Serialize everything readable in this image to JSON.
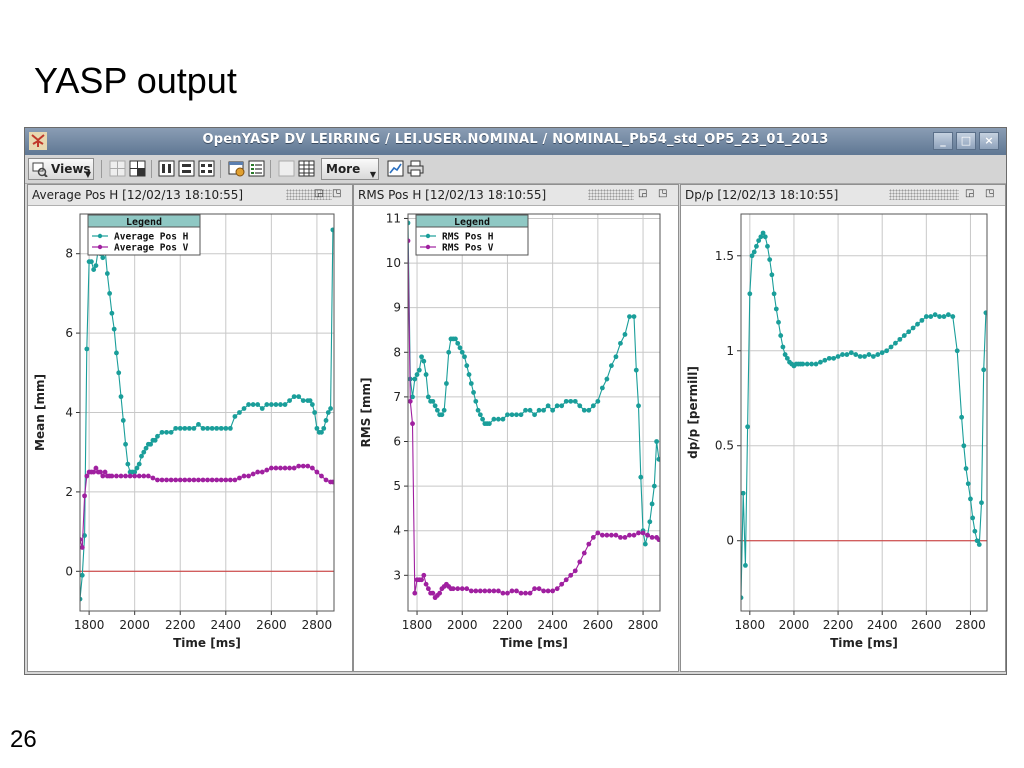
{
  "slide": {
    "title": "YASP output",
    "page_number": "26"
  },
  "window": {
    "title": "OpenYASP DV LEIRRING / LEI.USER.NOMINAL / NOMINAL_Pb54_std_OP5_23_01_2013",
    "controls": {
      "minimize": "_",
      "maximize": "□",
      "close": "×"
    }
  },
  "toolbar": {
    "views_label": "Views",
    "more_label": "More"
  },
  "panels": [
    {
      "header": "Average Pos H  [12/02/13 18:10:55]"
    },
    {
      "header": "RMS Pos H  [12/02/13 18:10:55]"
    },
    {
      "header": "Dp/p  [12/02/13 18:10:55]"
    }
  ],
  "chart_data": [
    {
      "type": "line",
      "xlabel": "Time [ms]",
      "ylabel": "Mean [mm]",
      "xlim": [
        1760,
        2875
      ],
      "ylim": [
        -1.0,
        9.0
      ],
      "xticks": [
        1800,
        2000,
        2200,
        2400,
        2600,
        2800
      ],
      "yticks": [
        0,
        2,
        4,
        6,
        8
      ],
      "grid": true,
      "legend": {
        "title": "Legend",
        "placement": "top-left"
      },
      "hline": {
        "y": 0,
        "color": "#cc3333"
      },
      "series": [
        {
          "name": "Average Pos H",
          "color": "#1a9e9a",
          "x": [
            1760,
            1770,
            1780,
            1790,
            1800,
            1810,
            1820,
            1830,
            1840,
            1850,
            1860,
            1870,
            1880,
            1890,
            1900,
            1910,
            1920,
            1930,
            1940,
            1950,
            1960,
            1970,
            1980,
            1990,
            2000,
            2010,
            2020,
            2030,
            2040,
            2050,
            2060,
            2070,
            2080,
            2090,
            2100,
            2120,
            2140,
            2160,
            2180,
            2200,
            2220,
            2240,
            2260,
            2280,
            2300,
            2320,
            2340,
            2360,
            2380,
            2400,
            2420,
            2440,
            2460,
            2480,
            2500,
            2520,
            2540,
            2560,
            2580,
            2600,
            2620,
            2640,
            2660,
            2680,
            2700,
            2720,
            2740,
            2760,
            2770,
            2780,
            2790,
            2800,
            2810,
            2820,
            2830,
            2840,
            2850,
            2860,
            2870
          ],
          "y": [
            -0.7,
            -0.1,
            0.9,
            5.6,
            7.8,
            7.8,
            7.6,
            7.7,
            8.1,
            8.0,
            7.9,
            8.1,
            7.5,
            7.0,
            6.5,
            6.1,
            5.5,
            5.0,
            4.4,
            3.8,
            3.2,
            2.7,
            2.5,
            2.5,
            2.5,
            2.6,
            2.7,
            2.9,
            3.0,
            3.1,
            3.2,
            3.2,
            3.3,
            3.3,
            3.4,
            3.5,
            3.5,
            3.5,
            3.6,
            3.6,
            3.6,
            3.6,
            3.6,
            3.7,
            3.6,
            3.6,
            3.6,
            3.6,
            3.6,
            3.6,
            3.6,
            3.9,
            4.0,
            4.1,
            4.2,
            4.2,
            4.2,
            4.1,
            4.2,
            4.2,
            4.2,
            4.2,
            4.2,
            4.3,
            4.4,
            4.4,
            4.3,
            4.3,
            4.3,
            4.2,
            4.0,
            3.6,
            3.5,
            3.5,
            3.6,
            3.8,
            4.0,
            4.1,
            8.6
          ]
        },
        {
          "name": "Average Pos V",
          "color": "#a020a0",
          "x": [
            1760,
            1770,
            1780,
            1790,
            1800,
            1810,
            1820,
            1830,
            1840,
            1850,
            1860,
            1870,
            1880,
            1890,
            1900,
            1920,
            1940,
            1960,
            1980,
            2000,
            2020,
            2040,
            2060,
            2080,
            2100,
            2120,
            2140,
            2160,
            2180,
            2200,
            2220,
            2240,
            2260,
            2280,
            2300,
            2320,
            2340,
            2360,
            2380,
            2400,
            2420,
            2440,
            2460,
            2480,
            2500,
            2520,
            2540,
            2560,
            2580,
            2600,
            2620,
            2640,
            2660,
            2680,
            2700,
            2720,
            2740,
            2760,
            2780,
            2800,
            2820,
            2840,
            2860,
            2870
          ],
          "y": [
            0.8,
            0.6,
            1.9,
            2.4,
            2.5,
            2.5,
            2.5,
            2.6,
            2.5,
            2.5,
            2.4,
            2.5,
            2.4,
            2.4,
            2.4,
            2.4,
            2.4,
            2.4,
            2.4,
            2.4,
            2.4,
            2.4,
            2.4,
            2.35,
            2.3,
            2.3,
            2.3,
            2.3,
            2.3,
            2.3,
            2.3,
            2.3,
            2.3,
            2.3,
            2.3,
            2.3,
            2.3,
            2.3,
            2.3,
            2.3,
            2.3,
            2.3,
            2.35,
            2.4,
            2.4,
            2.45,
            2.5,
            2.5,
            2.55,
            2.6,
            2.6,
            2.6,
            2.6,
            2.6,
            2.6,
            2.65,
            2.65,
            2.65,
            2.6,
            2.5,
            2.4,
            2.3,
            2.25,
            2.25
          ]
        }
      ]
    },
    {
      "type": "line",
      "xlabel": "Time [ms]",
      "ylabel": "RMS [mm]",
      "xlim": [
        1760,
        2875
      ],
      "ylim": [
        2.2,
        11.1
      ],
      "xticks": [
        1800,
        2000,
        2200,
        2400,
        2600,
        2800
      ],
      "yticks": [
        3,
        4,
        5,
        6,
        7,
        8,
        9,
        10,
        11
      ],
      "grid": true,
      "legend": {
        "title": "Legend",
        "placement": "top-left"
      },
      "series": [
        {
          "name": "RMS Pos H",
          "color": "#1a9e9a",
          "x": [
            1760,
            1770,
            1780,
            1790,
            1800,
            1810,
            1820,
            1830,
            1840,
            1850,
            1860,
            1870,
            1880,
            1890,
            1900,
            1910,
            1920,
            1930,
            1940,
            1950,
            1960,
            1970,
            1980,
            1990,
            2000,
            2010,
            2020,
            2030,
            2040,
            2050,
            2060,
            2070,
            2080,
            2090,
            2100,
            2110,
            2120,
            2140,
            2160,
            2180,
            2200,
            2220,
            2240,
            2260,
            2280,
            2300,
            2320,
            2340,
            2360,
            2380,
            2400,
            2420,
            2440,
            2460,
            2480,
            2500,
            2520,
            2540,
            2560,
            2580,
            2600,
            2620,
            2640,
            2660,
            2680,
            2700,
            2720,
            2740,
            2760,
            2770,
            2780,
            2790,
            2800,
            2810,
            2820,
            2830,
            2840,
            2850,
            2860,
            2870
          ],
          "y": [
            10.9,
            7.4,
            7.0,
            7.4,
            7.5,
            7.6,
            7.9,
            7.8,
            7.5,
            7.0,
            6.9,
            6.9,
            6.8,
            6.7,
            6.6,
            6.6,
            6.7,
            7.3,
            8.0,
            8.3,
            8.3,
            8.3,
            8.2,
            8.1,
            8.0,
            7.9,
            7.7,
            7.5,
            7.3,
            7.1,
            6.9,
            6.7,
            6.6,
            6.5,
            6.4,
            6.4,
            6.4,
            6.5,
            6.5,
            6.5,
            6.6,
            6.6,
            6.6,
            6.6,
            6.7,
            6.7,
            6.6,
            6.7,
            6.7,
            6.8,
            6.7,
            6.8,
            6.8,
            6.9,
            6.9,
            6.9,
            6.8,
            6.7,
            6.7,
            6.8,
            6.9,
            7.2,
            7.4,
            7.7,
            7.9,
            8.2,
            8.4,
            8.8,
            8.8,
            7.6,
            6.8,
            5.2,
            4.0,
            3.7,
            3.9,
            4.2,
            4.6,
            5.0,
            6.0,
            5.6
          ]
        },
        {
          "name": "RMS Pos V",
          "color": "#a020a0",
          "x": [
            1760,
            1770,
            1780,
            1790,
            1800,
            1810,
            1820,
            1830,
            1840,
            1850,
            1860,
            1870,
            1880,
            1890,
            1900,
            1910,
            1920,
            1930,
            1940,
            1950,
            1960,
            1980,
            2000,
            2020,
            2040,
            2060,
            2080,
            2100,
            2120,
            2140,
            2160,
            2180,
            2200,
            2220,
            2240,
            2260,
            2280,
            2300,
            2320,
            2340,
            2360,
            2380,
            2400,
            2420,
            2440,
            2460,
            2480,
            2500,
            2520,
            2540,
            2560,
            2580,
            2600,
            2620,
            2640,
            2660,
            2680,
            2700,
            2720,
            2740,
            2760,
            2780,
            2800,
            2820,
            2840,
            2860,
            2870
          ],
          "y": [
            10.5,
            6.9,
            6.4,
            2.6,
            2.9,
            2.9,
            2.9,
            3.0,
            2.8,
            2.7,
            2.6,
            2.6,
            2.5,
            2.55,
            2.6,
            2.7,
            2.75,
            2.8,
            2.75,
            2.7,
            2.7,
            2.7,
            2.7,
            2.7,
            2.65,
            2.65,
            2.65,
            2.65,
            2.65,
            2.65,
            2.65,
            2.6,
            2.6,
            2.65,
            2.65,
            2.6,
            2.6,
            2.6,
            2.7,
            2.7,
            2.65,
            2.65,
            2.65,
            2.7,
            2.8,
            2.9,
            3.0,
            3.1,
            3.3,
            3.5,
            3.7,
            3.85,
            3.95,
            3.9,
            3.9,
            3.9,
            3.9,
            3.85,
            3.85,
            3.9,
            3.9,
            3.95,
            3.95,
            3.9,
            3.85,
            3.85,
            3.8
          ]
        }
      ]
    },
    {
      "type": "line",
      "xlabel": "Time [ms]",
      "ylabel": "dp/p [permill]",
      "xlim": [
        1760,
        2875
      ],
      "ylim": [
        -0.37,
        1.72
      ],
      "xticks": [
        1800,
        2000,
        2200,
        2400,
        2600,
        2800
      ],
      "yticks": [
        0,
        0.5,
        1,
        1.5
      ],
      "ytick_labels": [
        "0",
        "0.5",
        "1",
        "1.5"
      ],
      "grid": true,
      "hline": {
        "y": 0,
        "color": "#cc3333"
      },
      "series": [
        {
          "name": "",
          "color": "#1a9e9a",
          "x": [
            1760,
            1770,
            1780,
            1790,
            1800,
            1810,
            1820,
            1830,
            1840,
            1850,
            1860,
            1870,
            1880,
            1890,
            1900,
            1910,
            1920,
            1930,
            1940,
            1950,
            1960,
            1970,
            1980,
            1990,
            2000,
            2010,
            2020,
            2030,
            2040,
            2060,
            2080,
            2100,
            2120,
            2140,
            2160,
            2180,
            2200,
            2220,
            2240,
            2260,
            2280,
            2300,
            2320,
            2340,
            2360,
            2380,
            2400,
            2420,
            2440,
            2460,
            2480,
            2500,
            2520,
            2540,
            2560,
            2580,
            2600,
            2620,
            2640,
            2660,
            2680,
            2700,
            2720,
            2740,
            2760,
            2770,
            2780,
            2790,
            2800,
            2810,
            2820,
            2830,
            2840,
            2850,
            2860,
            2870
          ],
          "y": [
            -0.3,
            0.25,
            -0.13,
            0.6,
            1.3,
            1.5,
            1.52,
            1.55,
            1.58,
            1.6,
            1.62,
            1.6,
            1.55,
            1.48,
            1.4,
            1.3,
            1.22,
            1.15,
            1.08,
            1.02,
            0.98,
            0.96,
            0.94,
            0.93,
            0.92,
            0.93,
            0.93,
            0.93,
            0.93,
            0.93,
            0.93,
            0.93,
            0.94,
            0.95,
            0.96,
            0.96,
            0.97,
            0.98,
            0.98,
            0.99,
            0.98,
            0.97,
            0.97,
            0.98,
            0.97,
            0.98,
            0.99,
            1.0,
            1.02,
            1.04,
            1.06,
            1.08,
            1.1,
            1.12,
            1.14,
            1.16,
            1.18,
            1.18,
            1.19,
            1.18,
            1.18,
            1.19,
            1.18,
            1.0,
            0.65,
            0.5,
            0.38,
            0.3,
            0.22,
            0.12,
            0.05,
            0.0,
            -0.02,
            0.2,
            0.9,
            1.2
          ]
        }
      ]
    }
  ]
}
